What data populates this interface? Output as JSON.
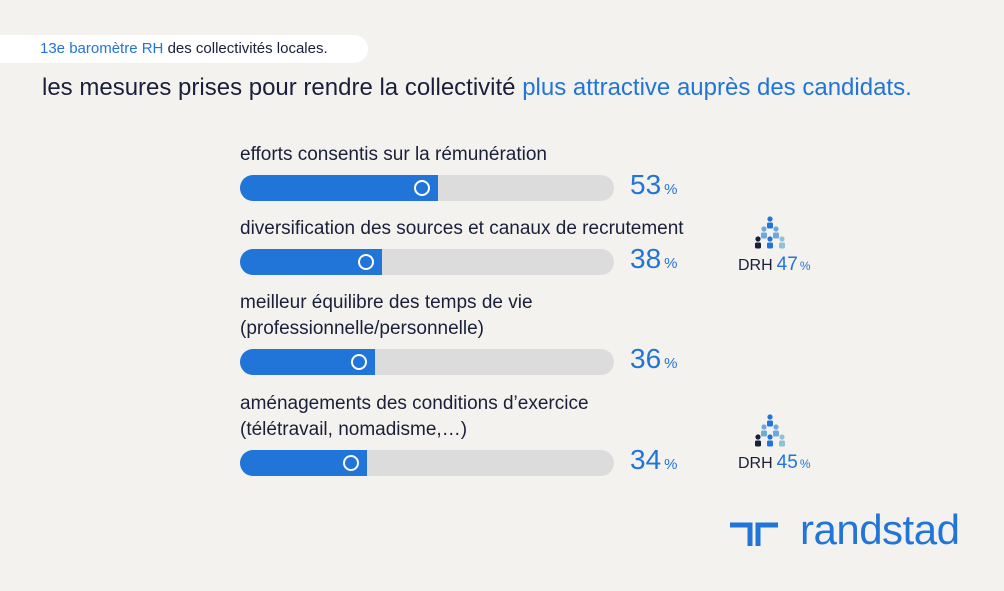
{
  "header": {
    "tag_accent": "13e baromètre RH",
    "tag_rest": " des collectivités locales.",
    "title_main": "les mesures prises pour rendre la collectivité ",
    "title_accent": "plus attractive auprès des candidats."
  },
  "colors": {
    "accent": "#2175d9",
    "track": "#dcdcdc",
    "text": "#1a1f3a",
    "background": "#f4f2ee"
  },
  "chart_data": {
    "type": "bar",
    "orientation": "horizontal",
    "categories": [
      "efforts consentis sur la rémunération",
      "diversification des sources et canaux de recrutement",
      "meilleur équilibre des temps de vie\n(professionnelle/personnelle)",
      "aménagements des conditions d’exercice\n(télétravail, nomadisme,…)"
    ],
    "values": [
      53,
      38,
      36,
      34
    ],
    "value_labels": [
      "53",
      "38",
      "36",
      "34"
    ],
    "unit": "%",
    "ylim": [
      0,
      100
    ],
    "comparisons": [
      {
        "label": "DRH",
        "value": "47",
        "unit": "%",
        "icon": "people-group-icon"
      },
      {
        "label": "DRH",
        "value": "45",
        "unit": "%",
        "icon": "people-group-icon"
      }
    ]
  },
  "logo": {
    "wordmark": "randstad",
    "icon": "randstad-mark-icon"
  }
}
